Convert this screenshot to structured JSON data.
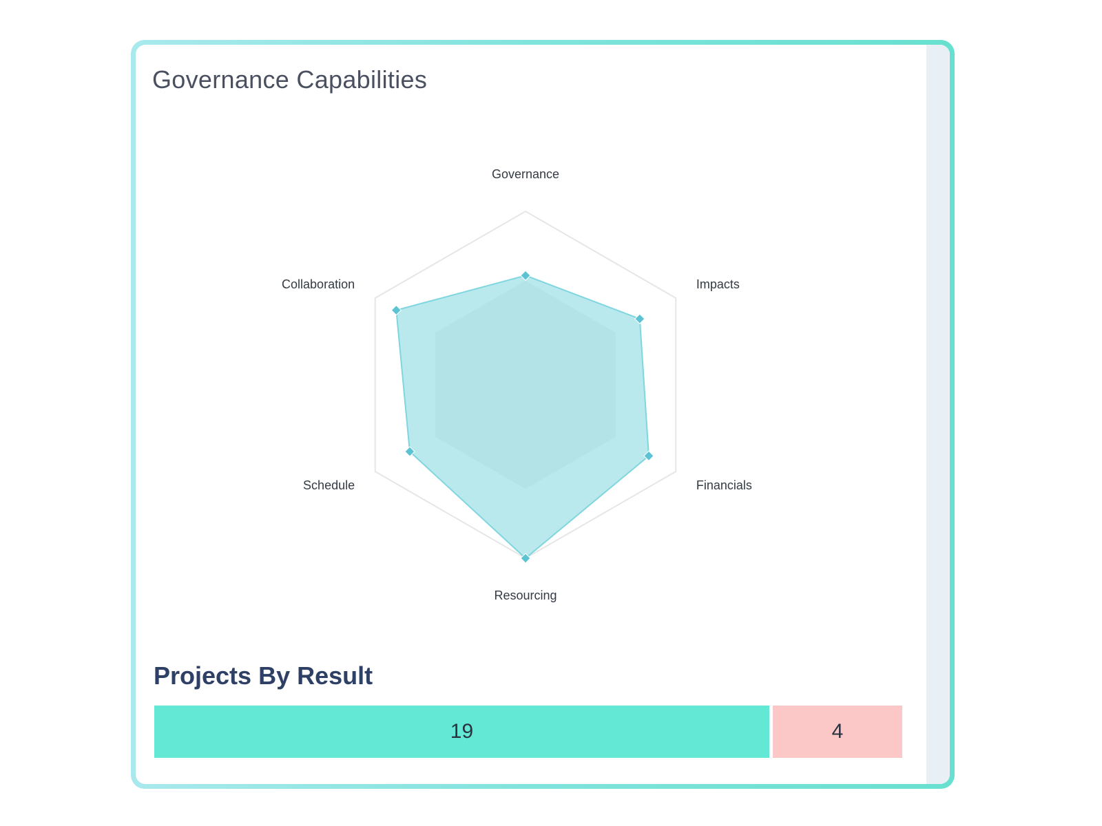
{
  "governance_panel": {
    "title": "Governance Capabilities"
  },
  "results_panel": {
    "title": "Projects By Result"
  },
  "colors": {
    "radar_fill": "#7fd6df",
    "radar_point": "#5cc3d3",
    "grid": "#e6e6e6",
    "result_positive": "#62e8d5",
    "result_negative": "#fbc7c7"
  },
  "chart_data": [
    {
      "type": "radar",
      "axes": [
        "Governance",
        "Impacts",
        "Financials",
        "Resourcing",
        "Schedule",
        "Collaboration"
      ],
      "values": [
        63,
        76,
        82,
        100,
        77,
        86
      ],
      "range": [
        0,
        100
      ],
      "grid_levels": 1
    },
    {
      "type": "bar",
      "orientation": "horizontal-stacked",
      "values": [
        19,
        4
      ],
      "colors": [
        "#62e8d5",
        "#fbc7c7"
      ]
    }
  ]
}
